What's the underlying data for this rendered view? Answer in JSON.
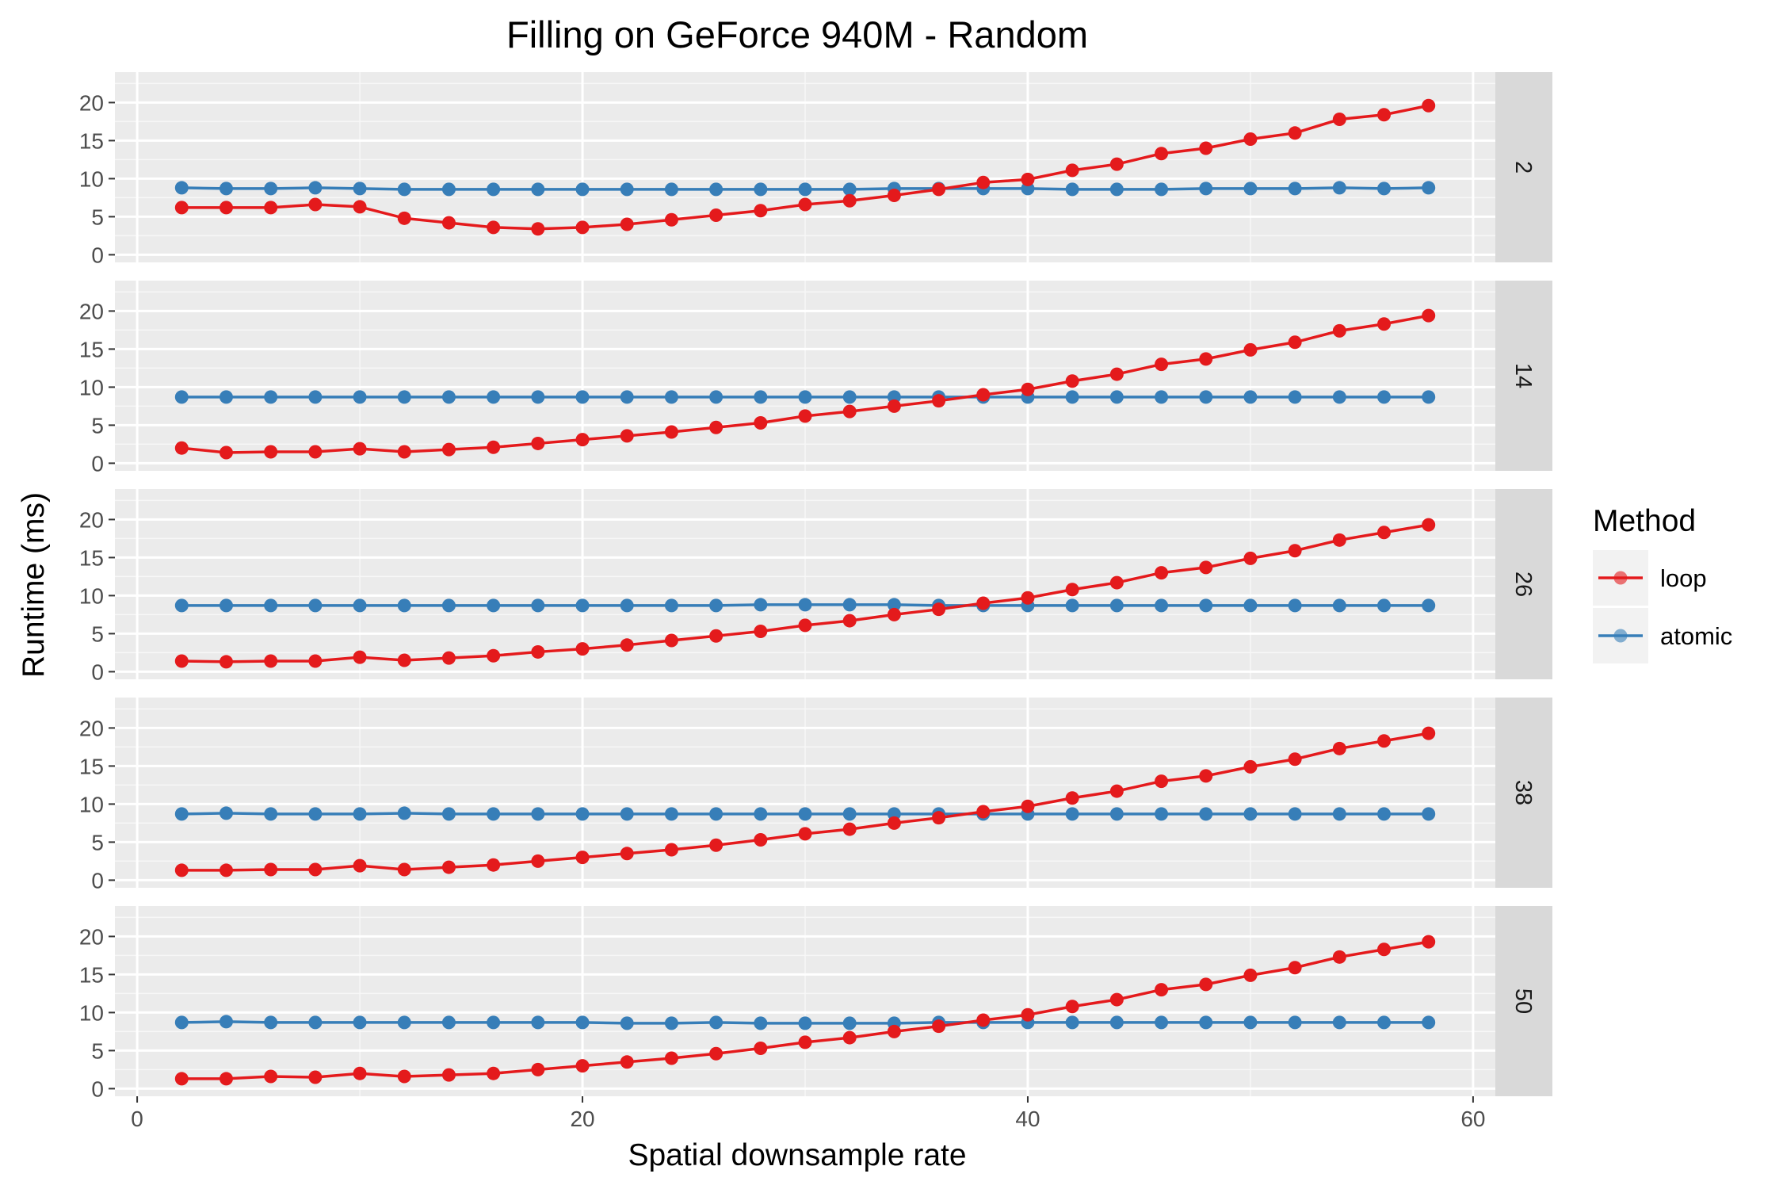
{
  "chart_data": {
    "type": "line",
    "title": "Filling on GeForce 940M - Random",
    "xlabel": "Spatial downsample rate",
    "ylabel": "Runtime (ms)",
    "xlim": [
      -1,
      61
    ],
    "ylim": [
      -1,
      24
    ],
    "x_ticks": [
      0,
      20,
      40,
      60
    ],
    "y_ticks": [
      0,
      5,
      10,
      15,
      20
    ],
    "grid": true,
    "facet_strip_position": "right",
    "legend": {
      "title": "Method",
      "position": "right",
      "entries": [
        {
          "name": "loop",
          "color": "#e41a1c"
        },
        {
          "name": "atomic",
          "color": "#377eb8"
        }
      ]
    },
    "x": [
      2,
      4,
      6,
      8,
      10,
      12,
      14,
      16,
      18,
      20,
      22,
      24,
      26,
      28,
      30,
      32,
      34,
      36,
      38,
      40,
      42,
      44,
      46,
      48,
      50,
      52,
      54,
      56,
      58
    ],
    "facets": [
      {
        "label": "2",
        "series": [
          {
            "name": "loop",
            "values": [
              6.2,
              6.2,
              6.2,
              6.6,
              6.3,
              4.8,
              4.2,
              3.6,
              3.4,
              3.6,
              4.0,
              4.6,
              5.2,
              5.8,
              6.6,
              7.1,
              7.8,
              8.6,
              9.5,
              9.9,
              11.1,
              11.9,
              13.3,
              14.0,
              15.2,
              16.0,
              17.8,
              18.4,
              19.6
            ]
          },
          {
            "name": "atomic",
            "values": [
              8.8,
              8.7,
              8.7,
              8.8,
              8.7,
              8.6,
              8.6,
              8.6,
              8.6,
              8.6,
              8.6,
              8.6,
              8.6,
              8.6,
              8.6,
              8.6,
              8.7,
              8.7,
              8.7,
              8.7,
              8.6,
              8.6,
              8.6,
              8.7,
              8.7,
              8.7,
              8.8,
              8.7,
              8.8
            ]
          }
        ]
      },
      {
        "label": "14",
        "series": [
          {
            "name": "loop",
            "values": [
              2.0,
              1.4,
              1.5,
              1.5,
              1.9,
              1.5,
              1.8,
              2.1,
              2.6,
              3.1,
              3.6,
              4.1,
              4.7,
              5.3,
              6.2,
              6.8,
              7.5,
              8.2,
              9.0,
              9.7,
              10.8,
              11.7,
              13.0,
              13.7,
              14.9,
              15.9,
              17.4,
              18.3,
              19.4
            ]
          },
          {
            "name": "atomic",
            "values": [
              8.7,
              8.7,
              8.7,
              8.7,
              8.7,
              8.7,
              8.7,
              8.7,
              8.7,
              8.7,
              8.7,
              8.7,
              8.7,
              8.7,
              8.7,
              8.7,
              8.7,
              8.7,
              8.7,
              8.7,
              8.7,
              8.7,
              8.7,
              8.7,
              8.7,
              8.7,
              8.7,
              8.7,
              8.7
            ]
          }
        ]
      },
      {
        "label": "26",
        "series": [
          {
            "name": "loop",
            "values": [
              1.4,
              1.3,
              1.4,
              1.4,
              1.9,
              1.5,
              1.8,
              2.1,
              2.6,
              3.0,
              3.5,
              4.1,
              4.7,
              5.3,
              6.1,
              6.7,
              7.5,
              8.2,
              9.0,
              9.7,
              10.8,
              11.7,
              13.0,
              13.7,
              14.9,
              15.9,
              17.3,
              18.3,
              19.3
            ]
          },
          {
            "name": "atomic",
            "values": [
              8.7,
              8.7,
              8.7,
              8.7,
              8.7,
              8.7,
              8.7,
              8.7,
              8.7,
              8.7,
              8.7,
              8.7,
              8.7,
              8.8,
              8.8,
              8.8,
              8.8,
              8.7,
              8.7,
              8.7,
              8.7,
              8.7,
              8.7,
              8.7,
              8.7,
              8.7,
              8.7,
              8.7,
              8.7
            ]
          }
        ]
      },
      {
        "label": "38",
        "series": [
          {
            "name": "loop",
            "values": [
              1.3,
              1.3,
              1.4,
              1.4,
              1.9,
              1.4,
              1.7,
              2.0,
              2.5,
              3.0,
              3.5,
              4.0,
              4.6,
              5.3,
              6.1,
              6.7,
              7.5,
              8.2,
              9.0,
              9.7,
              10.8,
              11.7,
              13.0,
              13.7,
              14.9,
              15.9,
              17.3,
              18.3,
              19.3
            ]
          },
          {
            "name": "atomic",
            "values": [
              8.7,
              8.8,
              8.7,
              8.7,
              8.7,
              8.8,
              8.7,
              8.7,
              8.7,
              8.7,
              8.7,
              8.7,
              8.7,
              8.7,
              8.7,
              8.7,
              8.7,
              8.7,
              8.7,
              8.7,
              8.7,
              8.7,
              8.7,
              8.7,
              8.7,
              8.7,
              8.7,
              8.7,
              8.7
            ]
          }
        ]
      },
      {
        "label": "50",
        "series": [
          {
            "name": "loop",
            "values": [
              1.3,
              1.3,
              1.6,
              1.5,
              2.0,
              1.6,
              1.8,
              2.0,
              2.5,
              3.0,
              3.5,
              4.0,
              4.6,
              5.3,
              6.1,
              6.7,
              7.5,
              8.2,
              9.0,
              9.7,
              10.8,
              11.7,
              13.0,
              13.7,
              14.9,
              15.9,
              17.3,
              18.3,
              19.3
            ]
          },
          {
            "name": "atomic",
            "values": [
              8.7,
              8.8,
              8.7,
              8.7,
              8.7,
              8.7,
              8.7,
              8.7,
              8.7,
              8.7,
              8.6,
              8.6,
              8.7,
              8.6,
              8.6,
              8.6,
              8.6,
              8.7,
              8.7,
              8.7,
              8.7,
              8.7,
              8.7,
              8.7,
              8.7,
              8.7,
              8.7,
              8.7,
              8.7
            ]
          }
        ]
      }
    ]
  }
}
